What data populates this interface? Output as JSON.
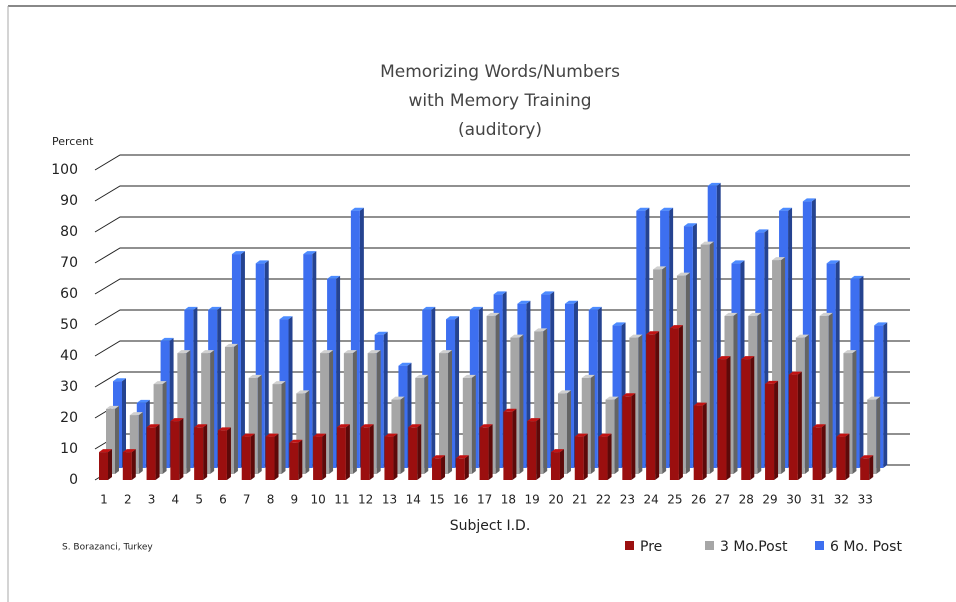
{
  "chart_data": {
    "type": "bar3d",
    "title": [
      "Memorizing Words/Numbers",
      "with Memory Training",
      "(auditory)"
    ],
    "y_label": "Percent",
    "x_label": "Subject I.D.",
    "source": "S. Borazanci, Turkey",
    "categories": [
      "1",
      "2",
      "3",
      "4",
      "5",
      "6",
      "7",
      "8",
      "9",
      "10",
      "11",
      "12",
      "13",
      "14",
      "15",
      "16",
      "17",
      "18",
      "19",
      "20",
      "21",
      "22",
      "23",
      "24",
      "25",
      "26",
      "27",
      "28",
      "29",
      "30",
      "31",
      "32",
      "33"
    ],
    "series": [
      {
        "name": "Pre",
        "color": "#9b0f0f",
        "values": [
          9,
          9,
          17,
          19,
          17,
          16,
          14,
          14,
          12,
          14,
          17,
          17,
          14,
          17,
          7,
          7,
          17,
          22,
          19,
          9,
          14,
          14,
          27,
          47,
          49,
          24,
          39,
          39,
          31,
          34,
          17,
          14,
          7
        ]
      },
      {
        "name": "3 Mo.Post",
        "color": "#a6a6a6",
        "values": [
          21,
          19,
          29,
          39,
          39,
          41,
          31,
          29,
          26,
          39,
          39,
          39,
          24,
          31,
          39,
          31,
          51,
          44,
          46,
          26,
          31,
          24,
          44,
          66,
          64,
          74,
          51,
          51,
          69,
          44,
          51,
          39,
          24
        ]
      },
      {
        "name": "6 Mo. Post",
        "color": "#3d6ff0",
        "values": [
          28,
          21,
          41,
          51,
          51,
          69,
          66,
          48,
          69,
          61,
          83,
          43,
          33,
          51,
          48,
          51,
          56,
          53,
          56,
          53,
          51,
          46,
          83,
          83,
          78,
          91,
          66,
          76,
          83,
          86,
          66,
          61,
          46
        ]
      }
    ],
    "ylim": [
      0,
      100
    ],
    "yticks": [
      0,
      10,
      20,
      30,
      40,
      50,
      60,
      70,
      80,
      90,
      100
    ],
    "grid": true,
    "legend": "bottom-right"
  }
}
